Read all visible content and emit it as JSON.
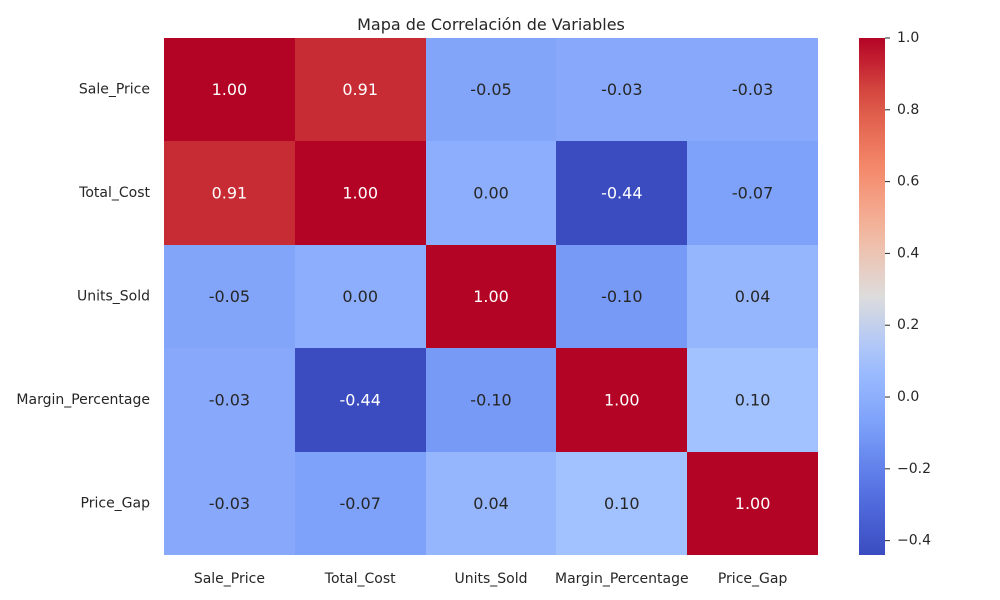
{
  "chart_data": {
    "type": "heatmap",
    "title": "Mapa de Correlación de Variables",
    "xlabel": "",
    "ylabel": "",
    "x_labels": [
      "Sale_Price",
      "Total_Cost",
      "Units_Sold",
      "Margin_Percentage",
      "Price_Gap"
    ],
    "y_labels": [
      "Sale_Price",
      "Total_Cost",
      "Units_Sold",
      "Margin_Percentage",
      "Price_Gap"
    ],
    "values": [
      [
        1.0,
        0.91,
        -0.05,
        -0.03,
        -0.03
      ],
      [
        0.91,
        1.0,
        0.0,
        -0.44,
        -0.07
      ],
      [
        -0.05,
        0.0,
        1.0,
        -0.1,
        0.04
      ],
      [
        -0.03,
        -0.44,
        -0.1,
        1.0,
        0.1
      ],
      [
        -0.03,
        -0.07,
        0.04,
        0.1,
        1.0
      ]
    ],
    "value_labels": [
      [
        "1.00",
        "0.91",
        "-0.05",
        "-0.03",
        "-0.03"
      ],
      [
        "0.91",
        "1.00",
        "0.00",
        "-0.44",
        "-0.07"
      ],
      [
        "-0.05",
        "0.00",
        "1.00",
        "-0.10",
        "0.04"
      ],
      [
        "-0.03",
        "-0.44",
        "-0.10",
        "1.00",
        "0.10"
      ],
      [
        "-0.03",
        "-0.07",
        "0.04",
        "0.10",
        "1.00"
      ]
    ],
    "colormap": "coolwarm",
    "color_range": [
      -0.44,
      1.0
    ],
    "colorbar": {
      "ticks": [
        1.0,
        0.8,
        0.6,
        0.4,
        0.2,
        0.0,
        -0.2,
        -0.4
      ],
      "tick_labels": [
        "1.0",
        "0.8",
        "0.6",
        "0.4",
        "0.2",
        "0.0",
        "−0.2",
        "−0.4"
      ]
    },
    "grid": false
  }
}
